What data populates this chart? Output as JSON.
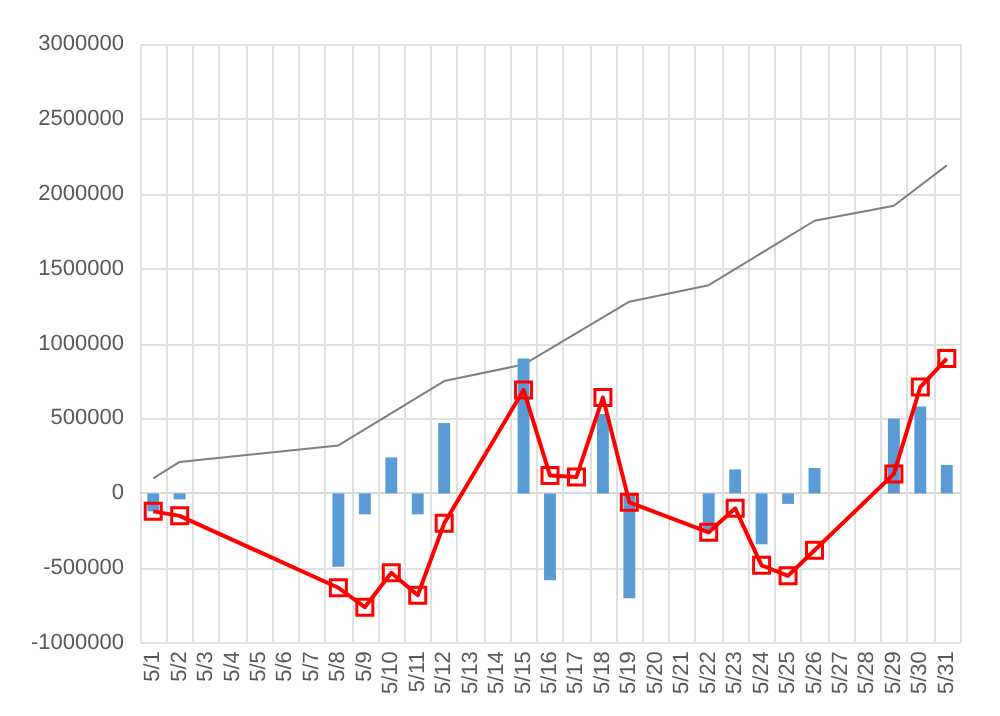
{
  "chart_data": {
    "type": "bar",
    "categories": [
      "5/1",
      "5/2",
      "5/3",
      "5/4",
      "5/5",
      "5/6",
      "5/7",
      "5/8",
      "5/9",
      "5/10",
      "5/11",
      "5/12",
      "5/13",
      "5/14",
      "5/15",
      "5/16",
      "5/17",
      "5/18",
      "5/19",
      "5/20",
      "5/21",
      "5/22",
      "5/23",
      "5/24",
      "5/25",
      "5/26",
      "5/27",
      "5/28",
      "5/29",
      "5/30",
      "5/31"
    ],
    "series": [
      {
        "color": "#5b9bd5",
        "values": [
          -120000,
          -40000,
          null,
          null,
          null,
          null,
          null,
          -490000,
          -140000,
          240000,
          -140000,
          470000,
          null,
          null,
          900000,
          -580000,
          null,
          530000,
          -700000,
          null,
          null,
          -250000,
          160000,
          -340000,
          -70000,
          170000,
          null,
          null,
          500000,
          580000,
          190000
        ]
      },
      {
        "type": "line",
        "color": "#7f7f7f",
        "marker": "none",
        "values": [
          100000,
          210000,
          null,
          null,
          null,
          null,
          null,
          320000,
          null,
          null,
          null,
          750000,
          null,
          null,
          860000,
          null,
          null,
          null,
          1280000,
          null,
          null,
          1390000,
          null,
          null,
          null,
          1820000,
          null,
          null,
          1920000,
          null,
          2190000
        ]
      },
      {
        "type": "line",
        "color": "#ff0000",
        "marker": "square",
        "values": [
          -120000,
          -150000,
          null,
          null,
          null,
          null,
          null,
          -630000,
          -760000,
          -530000,
          -680000,
          -200000,
          null,
          null,
          690000,
          120000,
          110000,
          640000,
          -60000,
          null,
          null,
          -260000,
          -100000,
          -480000,
          -550000,
          -380000,
          null,
          null,
          130000,
          710000,
          900000
        ]
      }
    ],
    "ylim": [
      -1000000,
      3000000
    ],
    "yticks": [
      -1000000,
      -500000,
      0,
      500000,
      1000000,
      1500000,
      2000000,
      2500000,
      3000000
    ],
    "grid": true
  }
}
